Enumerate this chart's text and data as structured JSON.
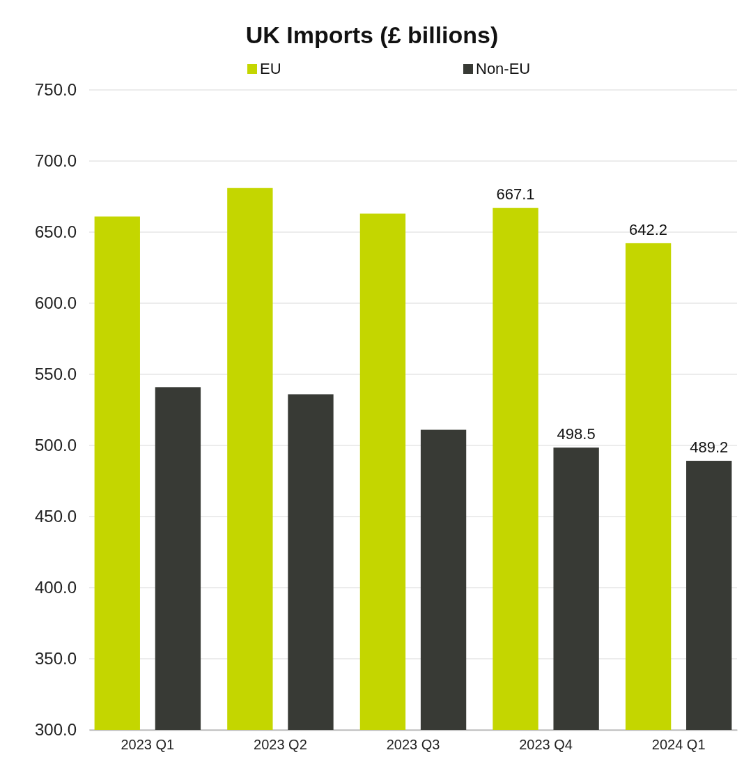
{
  "chart_data": {
    "type": "bar",
    "title": "UK Imports (£ billions)",
    "categories": [
      "2023 Q1",
      "2023 Q2",
      "2023 Q3",
      "2023 Q4",
      "2024 Q1"
    ],
    "series": [
      {
        "name": "EU",
        "color": "#c4d600",
        "values": [
          661,
          681,
          663,
          667.1,
          642.2
        ],
        "value_labels": [
          null,
          null,
          null,
          "667.1",
          "642.2"
        ]
      },
      {
        "name": "Non-EU",
        "color": "#383a35",
        "values": [
          541,
          536,
          511,
          498.5,
          489.2
        ],
        "value_labels": [
          null,
          null,
          null,
          "498.5",
          "489.2"
        ]
      }
    ],
    "ylim": [
      300,
      750
    ],
    "yticks": [
      {
        "value": 300,
        "label": "300.0"
      },
      {
        "value": 350,
        "label": "350.0"
      },
      {
        "value": 400,
        "label": "400.0"
      },
      {
        "value": 450,
        "label": "450.0"
      },
      {
        "value": 500,
        "label": "500.0"
      },
      {
        "value": 550,
        "label": "550.0"
      },
      {
        "value": 600,
        "label": "600.0"
      },
      {
        "value": 650,
        "label": "650.0"
      },
      {
        "value": 700,
        "label": "700.0"
      },
      {
        "value": 750,
        "label": "750.0"
      }
    ],
    "grid": "y",
    "legend": "top"
  }
}
